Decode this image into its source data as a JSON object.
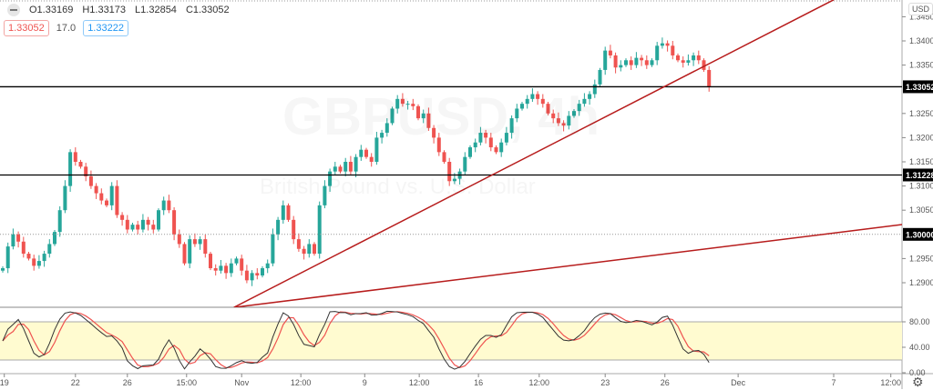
{
  "legend": {
    "open": "O1.33169",
    "high": "H1.33173",
    "low": "L1.32854",
    "close": "C1.33052"
  },
  "bid_badge": "1.33052",
  "spread": "17.0",
  "ask_badge": "1.33222",
  "watermark": {
    "symbol": "GBPUSD, 4h",
    "description": "British Pound vs. U.S. Dollar"
  },
  "currency_label": "USD",
  "settings_icon": "gear-icon",
  "colors": {
    "up": "#26a69a",
    "down": "#ef5350",
    "trendline": "#b71c1c",
    "stoch_k": "#333333",
    "stoch_d": "#ef5350",
    "band": "#fffbd0"
  },
  "chart_data": {
    "type": "candlestick",
    "symbol": "GBPUSD",
    "timeframe": "4h",
    "ylim": [
      1.2849,
      1.3485
    ],
    "price_ticks": [
      "1.34500",
      "1.34000",
      "1.33500",
      "1.32500",
      "1.32000",
      "1.31500",
      "1.31000",
      "1.30500",
      "1.29500",
      "1.29000"
    ],
    "price_tick_values": [
      1.345,
      1.34,
      1.335,
      1.325,
      1.32,
      1.315,
      1.31,
      1.305,
      1.295,
      1.29
    ],
    "horizontal_lines": [
      {
        "price": 1.33052,
        "label": "1.33052",
        "style": "solid"
      },
      {
        "price": 1.31228,
        "label": "1.31228",
        "style": "solid"
      },
      {
        "price": 1.3,
        "label": "1.30000",
        "style": "dotted"
      }
    ],
    "trendlines": [
      {
        "from": {
          "bar": 44.5,
          "price": 1.2849
        },
        "to": {
          "bar": 160,
          "price": 1.3485
        }
      },
      {
        "from": {
          "bar": 44.5,
          "price": 1.2849
        },
        "to": {
          "bar": 179,
          "price": 1.3028
        }
      }
    ],
    "x_ticks": [
      "19",
      "22",
      "26",
      "15:00",
      "Nov",
      "12:00",
      "9",
      "12:00",
      "16",
      "12:00",
      "23",
      "26",
      "Dec",
      "7",
      "12:00"
    ],
    "x_tick_bars": [
      0.3,
      14,
      24,
      35.4,
      46,
      57.4,
      69.7,
      80.2,
      91.6,
      103.3,
      116,
      127.5,
      141.6,
      160,
      171
    ],
    "close": [
      1.293,
      1.2975,
      1.3,
      1.2985,
      1.296,
      1.295,
      1.2935,
      1.2945,
      1.296,
      1.298,
      1.3005,
      1.305,
      1.31,
      1.317,
      1.315,
      1.314,
      1.312,
      1.31,
      1.3085,
      1.307,
      1.306,
      1.31,
      1.304,
      1.303,
      1.301,
      1.302,
      1.301,
      1.303,
      1.302,
      1.301,
      1.305,
      1.307,
      1.305,
      1.3,
      1.298,
      1.294,
      1.299,
      1.298,
      1.299,
      1.296,
      1.293,
      1.2925,
      1.2935,
      1.292,
      1.294,
      1.295,
      1.2925,
      1.2905,
      1.292,
      1.2915,
      1.293,
      1.294,
      1.3,
      1.303,
      1.306,
      1.303,
      1.299,
      1.297,
      1.296,
      1.298,
      1.296,
      1.306,
      1.31,
      1.313,
      1.314,
      1.313,
      1.315,
      1.313,
      1.316,
      1.3175,
      1.316,
      1.315,
      1.32,
      1.321,
      1.323,
      1.326,
      1.328,
      1.327,
      1.327,
      1.3265,
      1.324,
      1.325,
      1.322,
      1.32,
      1.317,
      1.315,
      1.311,
      1.3115,
      1.313,
      1.316,
      1.318,
      1.319,
      1.321,
      1.32,
      1.318,
      1.317,
      1.319,
      1.321,
      1.324,
      1.326,
      1.327,
      1.328,
      1.329,
      1.328,
      1.327,
      1.325,
      1.324,
      1.323,
      1.3225,
      1.3245,
      1.3255,
      1.327,
      1.328,
      1.329,
      1.331,
      1.334,
      1.338,
      1.337,
      1.3345,
      1.335,
      1.336,
      1.335,
      1.3365,
      1.336,
      1.335,
      1.336,
      1.339,
      1.3395,
      1.339,
      1.337,
      1.336,
      1.3355,
      1.336,
      1.337,
      1.336,
      1.334,
      1.3305
    ],
    "stochastic": {
      "ticks": [
        "80.00",
        "40.00",
        "0.00"
      ],
      "tick_values": [
        80,
        40,
        0
      ],
      "band": [
        20,
        80
      ]
    }
  }
}
